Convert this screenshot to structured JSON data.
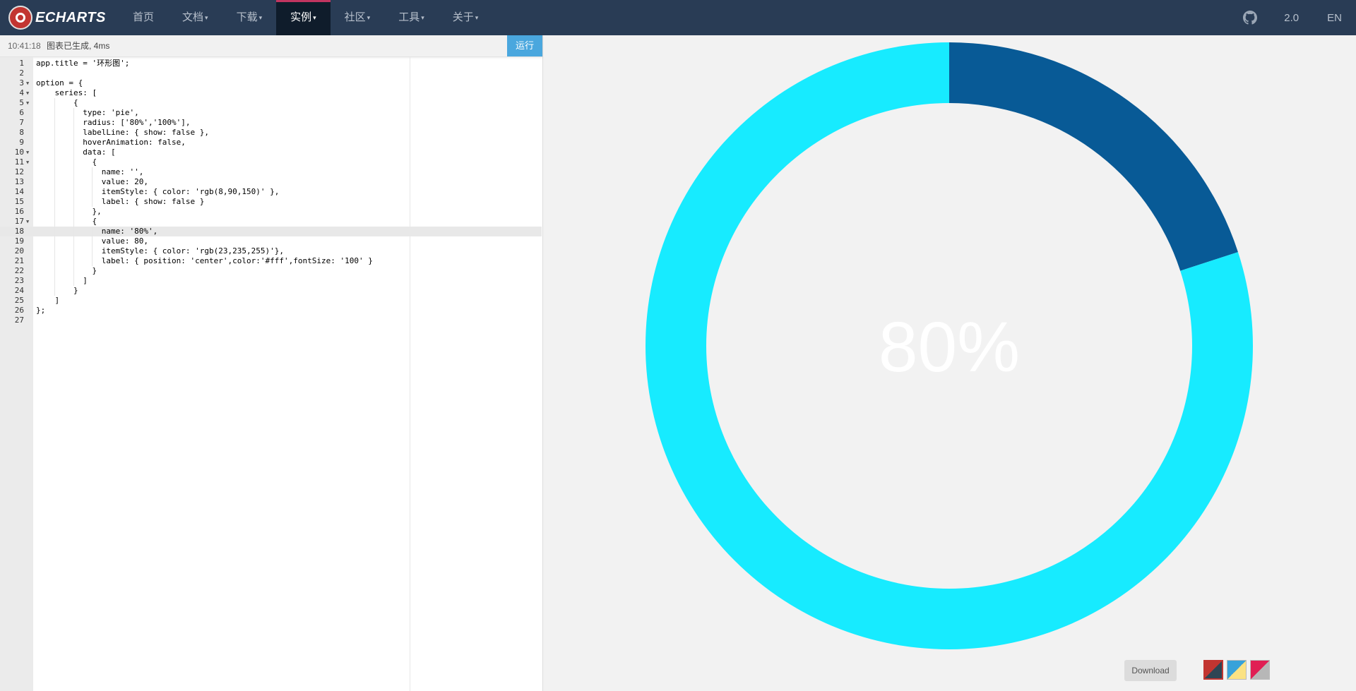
{
  "navbar": {
    "logo_text": "ECHARTS",
    "items": [
      {
        "label": "首页",
        "dropdown": false
      },
      {
        "label": "文档",
        "dropdown": true
      },
      {
        "label": "下载",
        "dropdown": true
      },
      {
        "label": "实例",
        "dropdown": true,
        "active": true
      },
      {
        "label": "社区",
        "dropdown": true
      },
      {
        "label": "工具",
        "dropdown": true
      },
      {
        "label": "关于",
        "dropdown": true
      }
    ],
    "github_icon": "github-icon",
    "version_label": "2.0",
    "lang_label": "EN"
  },
  "editor": {
    "status_time": "10:41:18",
    "status_message": "图表已生成, 4ms",
    "run_label": "运行",
    "active_line": 18,
    "lines": [
      "app.title = '环形图';",
      "",
      "option = {",
      "    series: [",
      "        {",
      "          type: 'pie',",
      "          radius: ['80%','100%'],",
      "          labelLine: { show: false },",
      "          hoverAnimation: false,",
      "          data: [",
      "            {",
      "              name: '',",
      "              value: 20,",
      "              itemStyle: { color: 'rgb(8,90,150)' },",
      "              label: { show: false }",
      "            },",
      "            {",
      "              name: '80%',",
      "              value: 80,",
      "              itemStyle: { color: 'rgb(23,235,255)'},",
      "              label: { position: 'center',color:'#fff',fontSize: '100' }",
      "            }",
      "          ]",
      "        }",
      "    ]",
      "};",
      ""
    ],
    "fold_lines": [
      3,
      4,
      5,
      10,
      11,
      17
    ]
  },
  "chart_data": {
    "type": "pie",
    "inner_radius_pct": 80,
    "outer_radius_pct": 100,
    "center_label": "80%",
    "center_label_color": "#ffffff",
    "slices": [
      {
        "name": "",
        "value": 20,
        "color": "#085a96"
      },
      {
        "name": "80%",
        "value": 80,
        "color": "#17ebff"
      }
    ]
  },
  "toolbar": {
    "download_label": "Download",
    "themes": [
      {
        "name": "theme-swatch-dark",
        "colors": [
          "#c23531",
          "#2f4554"
        ],
        "selected": true
      },
      {
        "name": "theme-swatch-light",
        "colors": [
          "#37a2da",
          "#fbe283"
        ],
        "selected": false
      },
      {
        "name": "theme-swatch-roma",
        "colors": [
          "#e01f54",
          "#b7b7b7"
        ],
        "selected": false
      }
    ]
  },
  "colors": {
    "navbar_bg": "#293c55",
    "active_tab_bg": "#0f1c2b",
    "run_button": "#4aa7de",
    "chart_bg": "#f2f2f2"
  }
}
